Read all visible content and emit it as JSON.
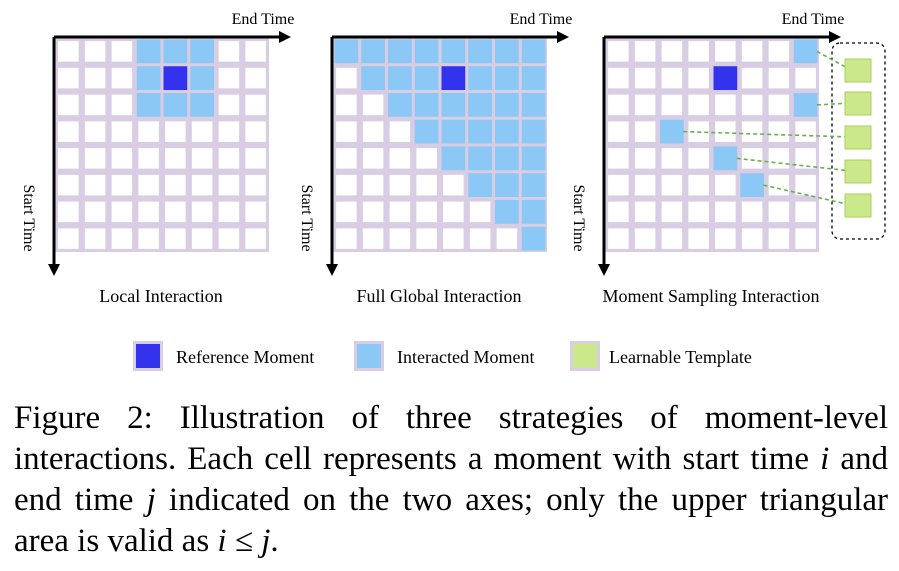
{
  "panels": [
    {
      "caption": "Local Interaction",
      "x_axis_label": "End Time",
      "y_axis_label": "Start Time",
      "highlighted_cells_desc": "3x3 neighborhood around reference"
    },
    {
      "caption": "Full Global Interaction",
      "x_axis_label": "End Time",
      "y_axis_label": "Start Time"
    },
    {
      "caption": "Moment Sampling Interaction",
      "x_axis_label": "End Time",
      "y_axis_label": "Start Time"
    }
  ],
  "legend": [
    {
      "label": "Reference Moment",
      "color": "#3333ee"
    },
    {
      "label": "Interacted Moment",
      "color": "#8cc8f5"
    },
    {
      "label": "Learnable Template",
      "color": "#cbe88a"
    }
  ],
  "colors": {
    "grid_line": "#d9cde4",
    "reference": "#3333ee",
    "interacted": "#8cc8f5",
    "template": "#cbe88a",
    "template_border": "#a8cf5c",
    "dashed_link": "#6ab04c"
  },
  "caption": {
    "figure_label": "Figure 2:",
    "part1": " Illustration of three strategies of moment-level interactions. Each cell represents a moment with start time ",
    "var_i": "i",
    "part2": " and end time ",
    "var_j": "j",
    "part3": " indicated on the two axes; only the upper triangular area is valid as ",
    "math_expr": "i ≤ j",
    "part4": "."
  }
}
